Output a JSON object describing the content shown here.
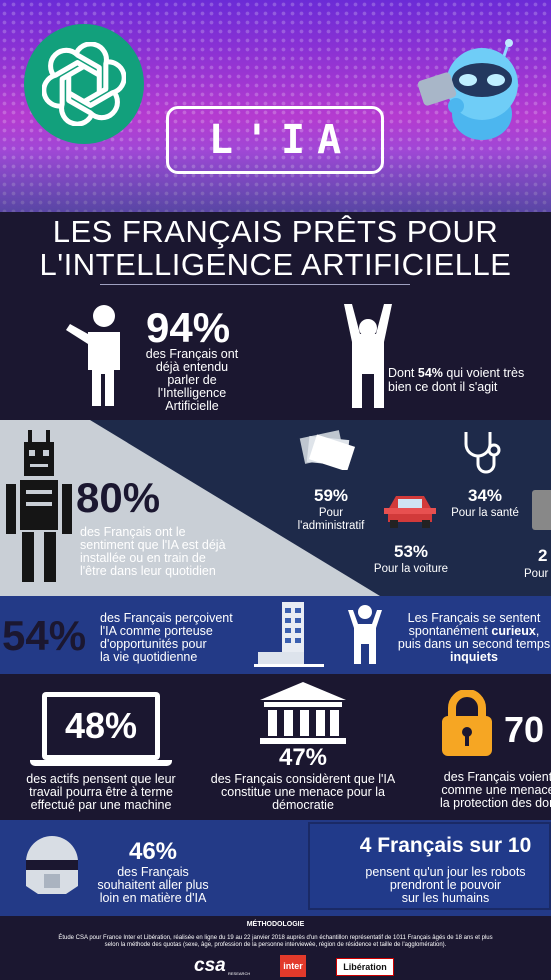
{
  "header": {
    "title": "L'IA"
  },
  "heading": {
    "line1": "LES FRANÇAIS PRÊTS POUR",
    "line2": "L'INTELLIGENCE ARTIFICIELLE"
  },
  "stat1": {
    "value": "94%",
    "text_lines": [
      "des Français ont",
      "déjà entendu",
      "parler de",
      "l'Intelligence",
      "Artificielle"
    ]
  },
  "stat1b": {
    "prefix": "Dont ",
    "highlight": "54%",
    "rest1": " qui voient très",
    "line2": "bien ce dont il s'agit"
  },
  "stat2": {
    "value": "80%",
    "text_lines": [
      "des Français ont le",
      "sentiment que l'IA est déjà",
      "installée ou en train de",
      "l'être dans leur quotidien"
    ]
  },
  "domains": [
    {
      "value": "59%",
      "label_lines": [
        "Pour",
        "l'administratif"
      ]
    },
    {
      "value": "34%",
      "label_lines": [
        "Pour la santé"
      ]
    },
    {
      "value": "53%",
      "label_lines": [
        "Pour la voiture"
      ]
    },
    {
      "value": "2",
      "label_lines": [
        "Pour"
      ]
    }
  ],
  "stat3": {
    "value": "54%",
    "text_lines": [
      "des Français perçoivent",
      "l'IA comme porteuse",
      "d'opportunités pour",
      "la vie quotidienne"
    ]
  },
  "curious": {
    "line1": "Les Français se sentent",
    "line2_pre": "spontanément ",
    "line2_bold": "curieux",
    "line2_post": ",",
    "line3": "puis dans un second temps",
    "line4_bold": "inquiets"
  },
  "stat4": {
    "value": "48%",
    "text_lines": [
      "des actifs pensent que leur",
      "travail pourra être à terme",
      "effectué par une machine"
    ]
  },
  "stat5": {
    "value": "47%",
    "text_lines": [
      "des Français considèrent que l'IA",
      "constitue une menace pour la",
      "démocratie"
    ]
  },
  "stat6": {
    "value": "70",
    "text_lines": [
      "des Français voient",
      "comme une menace",
      "la protection des don"
    ]
  },
  "stat7": {
    "value": "46%",
    "text_lines": [
      "des Français",
      "souhaitent aller plus",
      "loin en matière d'IA"
    ]
  },
  "stat8": {
    "value": "4 Français sur 10",
    "text_lines": [
      "pensent qu'un jour les robots",
      "prendront le pouvoir",
      "sur les humains"
    ]
  },
  "methodology": {
    "title": "MÉTHODOLOGIE",
    "line1": "Étude CSA pour France Inter et Libération, réalisée en ligne du 19 au 22 janvier 2018 auprès d'un échantillon représentatif de 1011 Français âgés de 18 ans et plus",
    "line2": "selon la méthode des quotas (sexe, âge, profession de la personne interviewée, région de résidence et taille de l'agglomération)."
  },
  "logos": {
    "csa": "csa",
    "csa_sub": "RESEARCH",
    "inter": "inter",
    "liberation": "Libération"
  },
  "colors": {
    "gpt_green": "#12a07c",
    "accent_blue": "#233a87",
    "dark": "#1b1730",
    "lock_yellow": "#f6a623"
  }
}
